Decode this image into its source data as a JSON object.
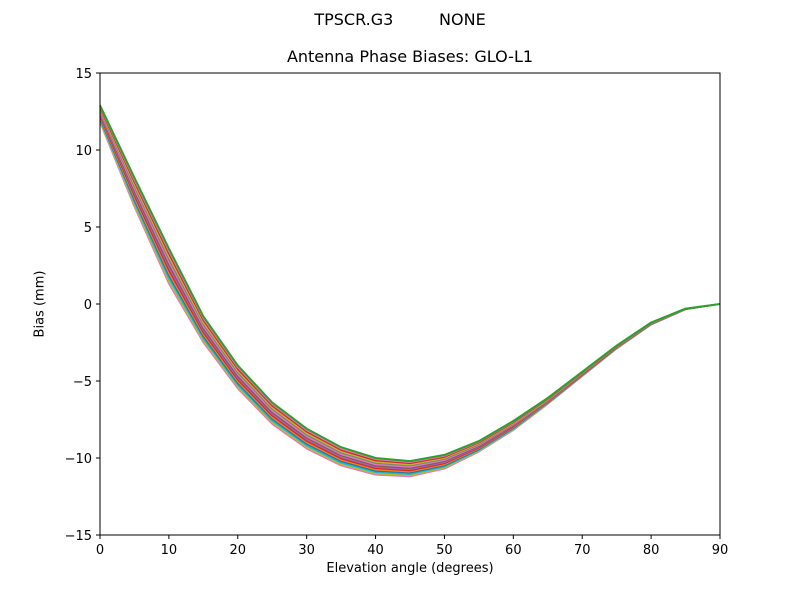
{
  "figure": {
    "suptitle": "TPSCR.G3         NONE",
    "title": "Antenna Phase Biases: GLO-L1"
  },
  "chart_data": {
    "type": "line",
    "title": "Antenna Phase Biases: GLO-L1",
    "suptitle": "TPSCR.G3         NONE",
    "xlabel": "Elevation angle (degrees)",
    "ylabel": "Bias (mm)",
    "xlim": [
      0,
      90
    ],
    "ylim": [
      -15,
      15
    ],
    "xticks": [
      0,
      10,
      20,
      30,
      40,
      50,
      60,
      70,
      80,
      90
    ],
    "yticks": [
      -15,
      -10,
      -5,
      0,
      5,
      10,
      15
    ],
    "grid": false,
    "legend": null,
    "x": [
      0,
      5,
      10,
      15,
      20,
      25,
      30,
      35,
      40,
      45,
      50,
      55,
      60,
      65,
      70,
      75,
      80,
      85,
      90
    ],
    "envelope": {
      "upper": [
        12.9,
        8.2,
        3.6,
        -0.8,
        -4.0,
        -6.4,
        -8.1,
        -9.3,
        -10.0,
        -10.2,
        -9.8,
        -8.9,
        -7.6,
        -6.1,
        -4.4,
        -2.7,
        -1.2,
        -0.3,
        0.0
      ],
      "lower": [
        11.8,
        6.3,
        1.3,
        -2.5,
        -5.5,
        -7.8,
        -9.4,
        -10.5,
        -11.1,
        -11.2,
        -10.7,
        -9.6,
        -8.2,
        -6.5,
        -4.7,
        -2.9,
        -1.35,
        -0.35,
        0.0
      ]
    },
    "series_count": 14,
    "series_colors": [
      "#e377c2",
      "#bcbd22",
      "#17becf",
      "#1f77b4",
      "#ff7f0e",
      "#d62728",
      "#9467bd",
      "#8c564b",
      "#e377c2",
      "#7f7f7f",
      "#bcbd22",
      "#d62728",
      "#e377c2",
      "#2ca02c"
    ],
    "note": "Many overlapping series (one per GLONASS frequency channel) forming a band between lower and upper envelopes; top-most series is green."
  }
}
